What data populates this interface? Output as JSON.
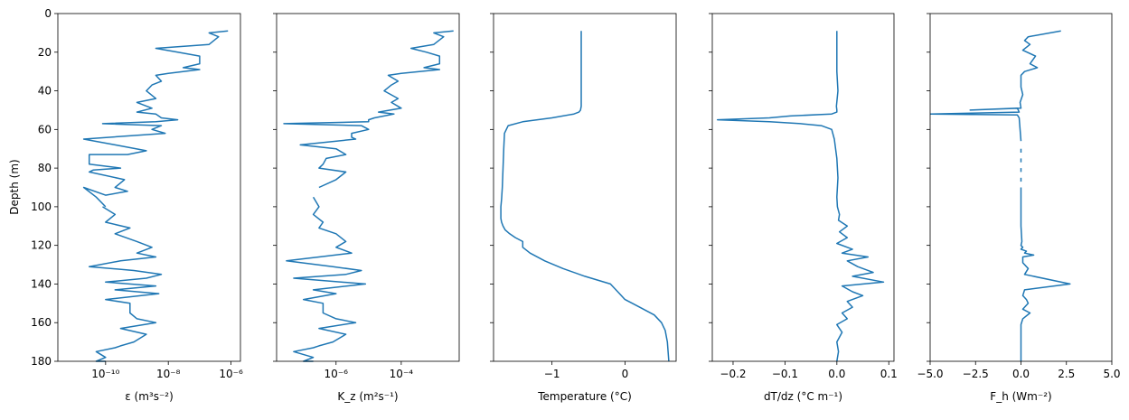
{
  "figure": {
    "y_axis_label": "Depth  (m)",
    "depth_ticks": [
      "0",
      "20",
      "40",
      "60",
      "80",
      "100",
      "120",
      "140",
      "160",
      "180"
    ],
    "line_color": "#1f77b4"
  },
  "chart_data": [
    {
      "type": "line",
      "xlabel": "ε (m³s⁻²)",
      "x_scale": "log",
      "xlim": [
        3e-12,
        2e-06
      ],
      "x_ticks": [
        1e-10,
        1e-08,
        1e-06
      ],
      "x_tick_labels": [
        "10⁻¹⁰",
        "10⁻⁸",
        "10⁻⁶"
      ],
      "ylabel": "Depth  (m)",
      "ylim": [
        180,
        0
      ],
      "y_ticks": [
        0,
        20,
        40,
        60,
        80,
        100,
        120,
        140,
        160,
        180
      ],
      "series": [
        {
          "x": [
            8e-07,
            2e-07,
            4e-07,
            2e-07,
            4e-09,
            2e-08,
            1e-07,
            1e-07,
            3e-08,
            1e-07,
            1e-08,
            4e-09,
            6e-09,
            3e-09,
            2e-09,
            4e-09,
            1e-09,
            3e-09,
            1e-09,
            4e-09,
            6e-09,
            2e-08,
            4e-09,
            8e-11,
            6e-09,
            3e-09,
            8e-09,
            2e-11,
            2e-10,
            2e-09,
            5e-10,
            3e-11,
            3e-11,
            3e-10,
            4e-11,
            3e-11,
            4e-10,
            2e-10,
            5e-10,
            1e-10,
            2e-11,
            5e-11,
            1e-10
          ],
          "y": [
            9,
            10,
            12,
            16,
            18,
            20,
            22,
            26,
            28,
            29,
            31,
            32,
            35,
            37,
            40,
            44,
            46,
            49,
            51,
            52,
            54,
            55,
            56,
            57,
            58,
            60,
            62,
            65,
            68,
            71,
            73,
            73,
            78,
            80,
            81,
            82,
            86,
            90,
            92,
            94,
            90,
            95,
            100
          ]
        },
        {
          "x": [
            8e-11,
            2e-10,
            1e-10,
            6e-10,
            2e-10,
            1e-09,
            3e-09,
            1e-09,
            4e-09,
            3e-10,
            3e-11,
            8e-10,
            6e-09,
            2e-09,
            1e-10,
            4e-09,
            2e-10,
            5e-09,
            1e-10,
            6e-10,
            6e-10,
            1e-09,
            4e-09,
            3e-10,
            2e-09,
            8e-10,
            3e-10,
            2e-10,
            5e-11,
            1e-10,
            5e-11,
            1e-10
          ],
          "y": [
            100,
            104,
            108,
            111,
            114,
            118,
            121,
            124,
            126,
            128,
            131,
            133,
            135,
            137,
            139,
            141,
            143,
            145,
            148,
            150,
            155,
            158,
            160,
            163,
            166,
            170,
            172,
            173,
            175,
            178,
            180,
            180
          ]
        }
      ]
    },
    {
      "type": "line",
      "xlabel": "K_z (m²s⁻¹)",
      "x_scale": "log",
      "xlim": [
        1.5e-08,
        0.006
      ],
      "x_ticks": [
        1e-06,
        0.0001
      ],
      "x_tick_labels": [
        "10⁻⁶",
        "10⁻⁴"
      ],
      "ylabel": "",
      "ylim": [
        180,
        0
      ],
      "y_ticks": [
        0,
        20,
        40,
        60,
        80,
        100,
        120,
        140,
        160,
        180
      ],
      "series": [
        {
          "x": [
            0.004,
            0.001,
            0.002,
            0.001,
            0.0002,
            0.0006,
            0.0015,
            0.0015,
            0.0005,
            0.0015,
            0.0001,
            4e-05,
            8e-05,
            5e-05,
            3e-05,
            8e-05,
            5e-05,
            0.0001,
            2e-05,
            6e-05,
            6e-05,
            1.5e-05,
            1e-05,
            1e-05,
            2.5e-08,
            6e-06,
            1e-05,
            3e-06,
            3e-06,
            4e-06,
            8e-08,
            1e-06,
            2e-06,
            5e-07,
            4e-07,
            3e-07,
            2e-06,
            1e-06,
            3e-07
          ],
          "y": [
            9,
            10,
            12,
            16,
            18,
            20,
            22,
            26,
            28,
            29,
            31,
            32,
            35,
            37,
            40,
            44,
            46,
            49,
            51,
            52,
            52,
            54,
            55,
            56,
            57,
            58,
            60,
            62,
            64,
            65,
            68,
            70,
            73,
            75,
            78,
            80,
            82,
            86,
            90
          ]
        },
        {
          "x": [
            2e-07,
            3e-07,
            2e-07,
            4e-07,
            3e-07,
            1e-06,
            2e-06,
            1e-06,
            3e-06,
            3e-07,
            3e-08,
            8e-07,
            6e-06,
            2e-06,
            5e-08,
            8e-06,
            2e-07,
            1e-06,
            1e-07,
            4e-07,
            4e-07,
            1e-06,
            4e-06,
            3e-07,
            2e-06,
            8e-07,
            3e-07,
            2e-07,
            5e-08,
            2e-07,
            1e-07,
            2e-07
          ],
          "y": [
            95,
            100,
            104,
            108,
            111,
            114,
            118,
            121,
            124,
            126,
            128,
            131,
            133,
            135,
            137,
            140,
            143,
            145,
            148,
            150,
            155,
            158,
            160,
            163,
            166,
            170,
            172,
            173,
            175,
            178,
            180,
            180
          ]
        }
      ]
    },
    {
      "type": "line",
      "xlabel": "Temperature  (°C)",
      "x_scale": "linear",
      "xlim": [
        -1.8,
        0.7
      ],
      "x_ticks": [
        -1,
        0
      ],
      "x_tick_labels": [
        "−1",
        "0"
      ],
      "ylabel": "",
      "ylim": [
        180,
        0
      ],
      "y_ticks": [
        0,
        20,
        40,
        60,
        80,
        100,
        120,
        140,
        160,
        180
      ],
      "series": [
        {
          "x": [
            -0.6,
            -0.6,
            -0.6,
            -0.61,
            -0.63,
            -0.7,
            -1.0,
            -1.4,
            -1.6,
            -1.65,
            -1.66,
            -1.67,
            -1.68,
            -1.69,
            -1.7,
            -1.7,
            -1.7,
            -1.7,
            -1.69,
            -1.67,
            -1.64,
            -1.58,
            -1.5,
            -1.4,
            -1.4,
            -1.3,
            -1.1,
            -0.85,
            -0.55,
            -0.2,
            -0.1,
            0.0,
            0.2,
            0.4,
            0.5,
            0.55,
            0.58,
            0.6
          ],
          "y": [
            9,
            20,
            48,
            50,
            51,
            52,
            54,
            56,
            58,
            62,
            70,
            80,
            90,
            96,
            100,
            102,
            104,
            106,
            108,
            110,
            112,
            114,
            116,
            118,
            121,
            124,
            128,
            132,
            136,
            140,
            144,
            148,
            152,
            156,
            160,
            164,
            170,
            180
          ]
        }
      ]
    },
    {
      "type": "line",
      "xlabel": "dT/dz  (°C m⁻¹)",
      "x_scale": "linear",
      "xlim": [
        -0.24,
        0.11
      ],
      "x_ticks": [
        -0.2,
        -0.1,
        0.0,
        0.1
      ],
      "x_tick_labels": [
        "−0.2",
        "−0.1",
        "0.0",
        "0.1"
      ],
      "ylabel": "",
      "ylim": [
        180,
        0
      ],
      "y_ticks": [
        0,
        20,
        40,
        60,
        80,
        100,
        120,
        140,
        160,
        180
      ],
      "series": [
        {
          "x": [
            0.0,
            0.0,
            0.002,
            -0.001,
            0.0,
            0.0,
            -0.01,
            -0.09,
            -0.13,
            -0.23,
            -0.13,
            -0.07,
            -0.03,
            -0.01,
            -0.005,
            0.0,
            0.002,
            0.0,
            0.001,
            0.005,
            0.003,
            0.02,
            0.005,
            0.02,
            0.0,
            0.03,
            0.01,
            0.06,
            0.02,
            0.04,
            0.07,
            0.03,
            0.09,
            0.01,
            0.03,
            0.05,
            0.02,
            0.03,
            0.01,
            0.02,
            0.0,
            0.01,
            0.0,
            0.003,
            0.0
          ],
          "y": [
            9,
            30,
            40,
            48,
            50,
            51,
            52,
            53,
            54,
            55,
            56,
            57,
            58,
            60,
            65,
            75,
            85,
            95,
            100,
            104,
            107,
            110,
            113,
            116,
            119,
            122,
            124,
            126,
            128,
            131,
            134,
            136,
            139,
            141,
            144,
            146,
            149,
            152,
            155,
            158,
            161,
            165,
            170,
            175,
            180
          ]
        }
      ]
    },
    {
      "type": "line",
      "xlabel": "F_h  (Wm⁻²)",
      "x_scale": "linear",
      "xlim": [
        -5.0,
        5.0
      ],
      "x_ticks": [
        -5.0,
        -2.5,
        0.0,
        2.5,
        5.0
      ],
      "x_tick_labels": [
        "−5.0",
        "−2.5",
        "0.0",
        "2.5",
        "5.0"
      ],
      "ylabel": "",
      "ylim": [
        180,
        0
      ],
      "y_ticks": [
        0,
        20,
        40,
        60,
        80,
        100,
        120,
        140,
        160,
        180
      ],
      "series": [
        {
          "x": [
            2.2,
            0.4,
            0.2,
            0.5,
            0.1,
            0.8,
            0.5,
            0.9,
            0.2,
            0.0,
            0.0,
            0.1,
            -0.05,
            0.0,
            -2.8,
            -0.2,
            -0.1,
            -5.0
          ],
          "y": [
            9,
            12,
            14,
            16,
            19,
            22,
            26,
            28,
            30,
            32,
            38,
            42,
            46,
            49,
            50,
            49,
            51,
            52
          ]
        },
        {
          "x": [
            -5.0,
            -0.2,
            -0.1,
            -0.05,
            0.0
          ],
          "y": [
            52,
            52.5,
            54,
            60,
            66
          ]
        },
        {
          "x": [
            0.0,
            0.0
          ],
          "y": [
            70,
            72
          ]
        },
        {
          "x": [
            0.0,
            0.0
          ],
          "y": [
            75,
            77
          ]
        },
        {
          "x": [
            0.0,
            0.0
          ],
          "y": [
            80,
            82
          ]
        },
        {
          "x": [
            0.0,
            0.0
          ],
          "y": [
            85,
            87
          ]
        },
        {
          "x": [
            0.0,
            0.0,
            0.05,
            0.0,
            0.1,
            0.0,
            0.3,
            0.2,
            0.7,
            0.1,
            0.1,
            0.4,
            0.2,
            2.7,
            0.2,
            0.1,
            0.3,
            0.4,
            0.1,
            0.5,
            0.1,
            0.0,
            0.0,
            0.0
          ],
          "y": [
            90,
            110,
            118,
            120,
            121,
            122,
            123,
            124,
            125,
            126,
            129,
            132,
            135,
            140,
            143,
            146,
            148,
            150,
            153,
            155,
            158,
            161,
            170,
            180
          ]
        }
      ]
    }
  ]
}
